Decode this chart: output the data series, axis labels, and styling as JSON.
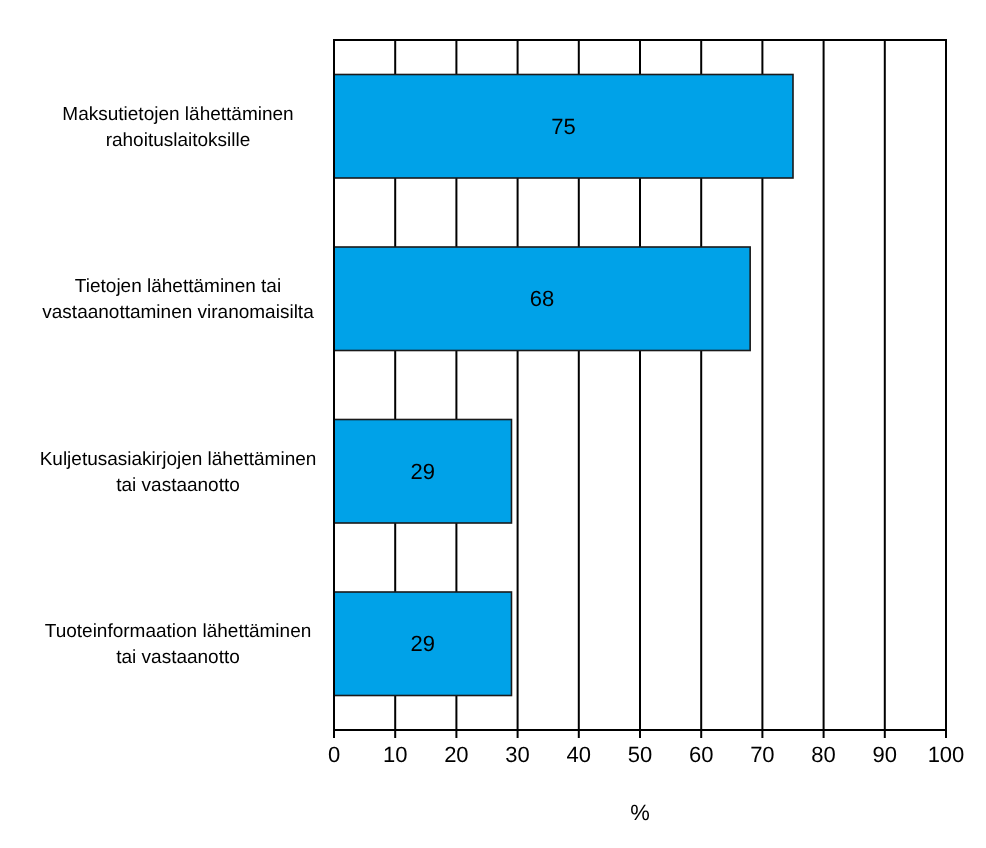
{
  "chart_data": {
    "type": "bar",
    "orientation": "horizontal",
    "xlabel": "%",
    "categories": [
      "Maksutietojen lähettäminen rahoituslaitoksille",
      "Tietojen lähettäminen tai vastaanottaminen viranomaisilta",
      "Kuljetusasiakirjojen lähettäminen tai vastaanotto",
      "Tuoteinformaation lähettäminen tai vastaanotto"
    ],
    "values": [
      75,
      68,
      29,
      29
    ],
    "color": "#00a2e8",
    "data_labels": true,
    "grid": "x",
    "xlim": [
      0,
      100
    ],
    "xticks": [
      0,
      10,
      20,
      30,
      40,
      50,
      60,
      70,
      80,
      90,
      100
    ]
  }
}
